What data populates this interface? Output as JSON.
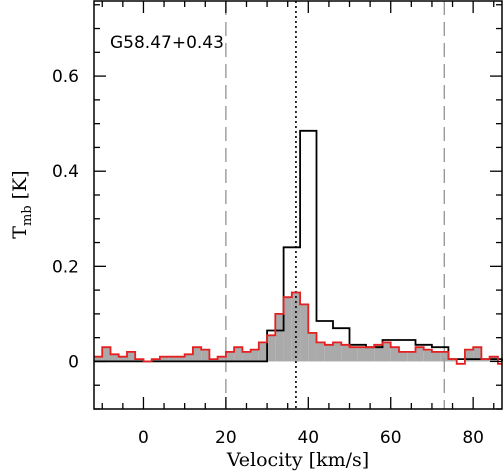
{
  "chart_data": {
    "type": "line",
    "title": "",
    "annotation": "G58.47+0.43",
    "xlabel": "Velocity [km/s]",
    "ylabel": {
      "main": "T",
      "sub": "mb",
      "unit": "[K]"
    },
    "xlim": [
      -12,
      87
    ],
    "ylim": [
      -0.1,
      0.76
    ],
    "xticks": [
      0,
      20,
      40,
      60,
      80
    ],
    "yticks": [
      0,
      0.2,
      0.4,
      0.6
    ],
    "xtick_labels": [
      "0",
      "20",
      "40",
      "60",
      "80"
    ],
    "ytick_labels": [
      "0",
      "0.2",
      "0.4",
      "0.6"
    ],
    "grid": false,
    "vlines": [
      {
        "x": 20,
        "style": "dashed",
        "color": "#999999"
      },
      {
        "x": 73,
        "style": "dashed",
        "color": "#999999"
      },
      {
        "x": 37,
        "style": "dotted",
        "color": "#000000"
      }
    ],
    "series": [
      {
        "style": "step",
        "color": "#000000",
        "x": [
          -12,
          26,
          30,
          34,
          38,
          42,
          46,
          50,
          54,
          58,
          62,
          66,
          70,
          74,
          87
        ],
        "values": [
          0,
          0,
          0.065,
          0.24,
          0.485,
          0.085,
          0.07,
          0.035,
          0.03,
          0.045,
          0.045,
          0.035,
          0.03,
          0.005,
          0
        ]
      },
      {
        "style": "step",
        "color": "#e52020",
        "fill": "#aaaaaa",
        "x": [
          -12,
          -10,
          -8,
          -6,
          -4,
          -2,
          0,
          2,
          4,
          6,
          8,
          10,
          12,
          14,
          16,
          18,
          20,
          22,
          24,
          26,
          28,
          30,
          32,
          34,
          36,
          38,
          40,
          42,
          44,
          46,
          48,
          50,
          52,
          54,
          56,
          58,
          60,
          62,
          64,
          66,
          68,
          70,
          72,
          74,
          76,
          78,
          80,
          82,
          84,
          86
        ],
        "values": [
          0.01,
          0.03,
          0.015,
          0.01,
          0.02,
          0.005,
          0,
          0.005,
          0.01,
          0.01,
          0.01,
          0.015,
          0.03,
          0.025,
          0.005,
          0.01,
          0.02,
          0.03,
          0.02,
          0.025,
          0.04,
          0.055,
          0.1,
          0.135,
          0.145,
          0.12,
          0.06,
          0.04,
          0.035,
          0.04,
          0.035,
          0.03,
          0.03,
          0.03,
          0.035,
          0.04,
          0.03,
          0.02,
          0.02,
          0.03,
          0.025,
          0.02,
          0.02,
          0.005,
          -0.005,
          0.025,
          0.03,
          0.005,
          0.01,
          -0.005
        ]
      }
    ]
  }
}
